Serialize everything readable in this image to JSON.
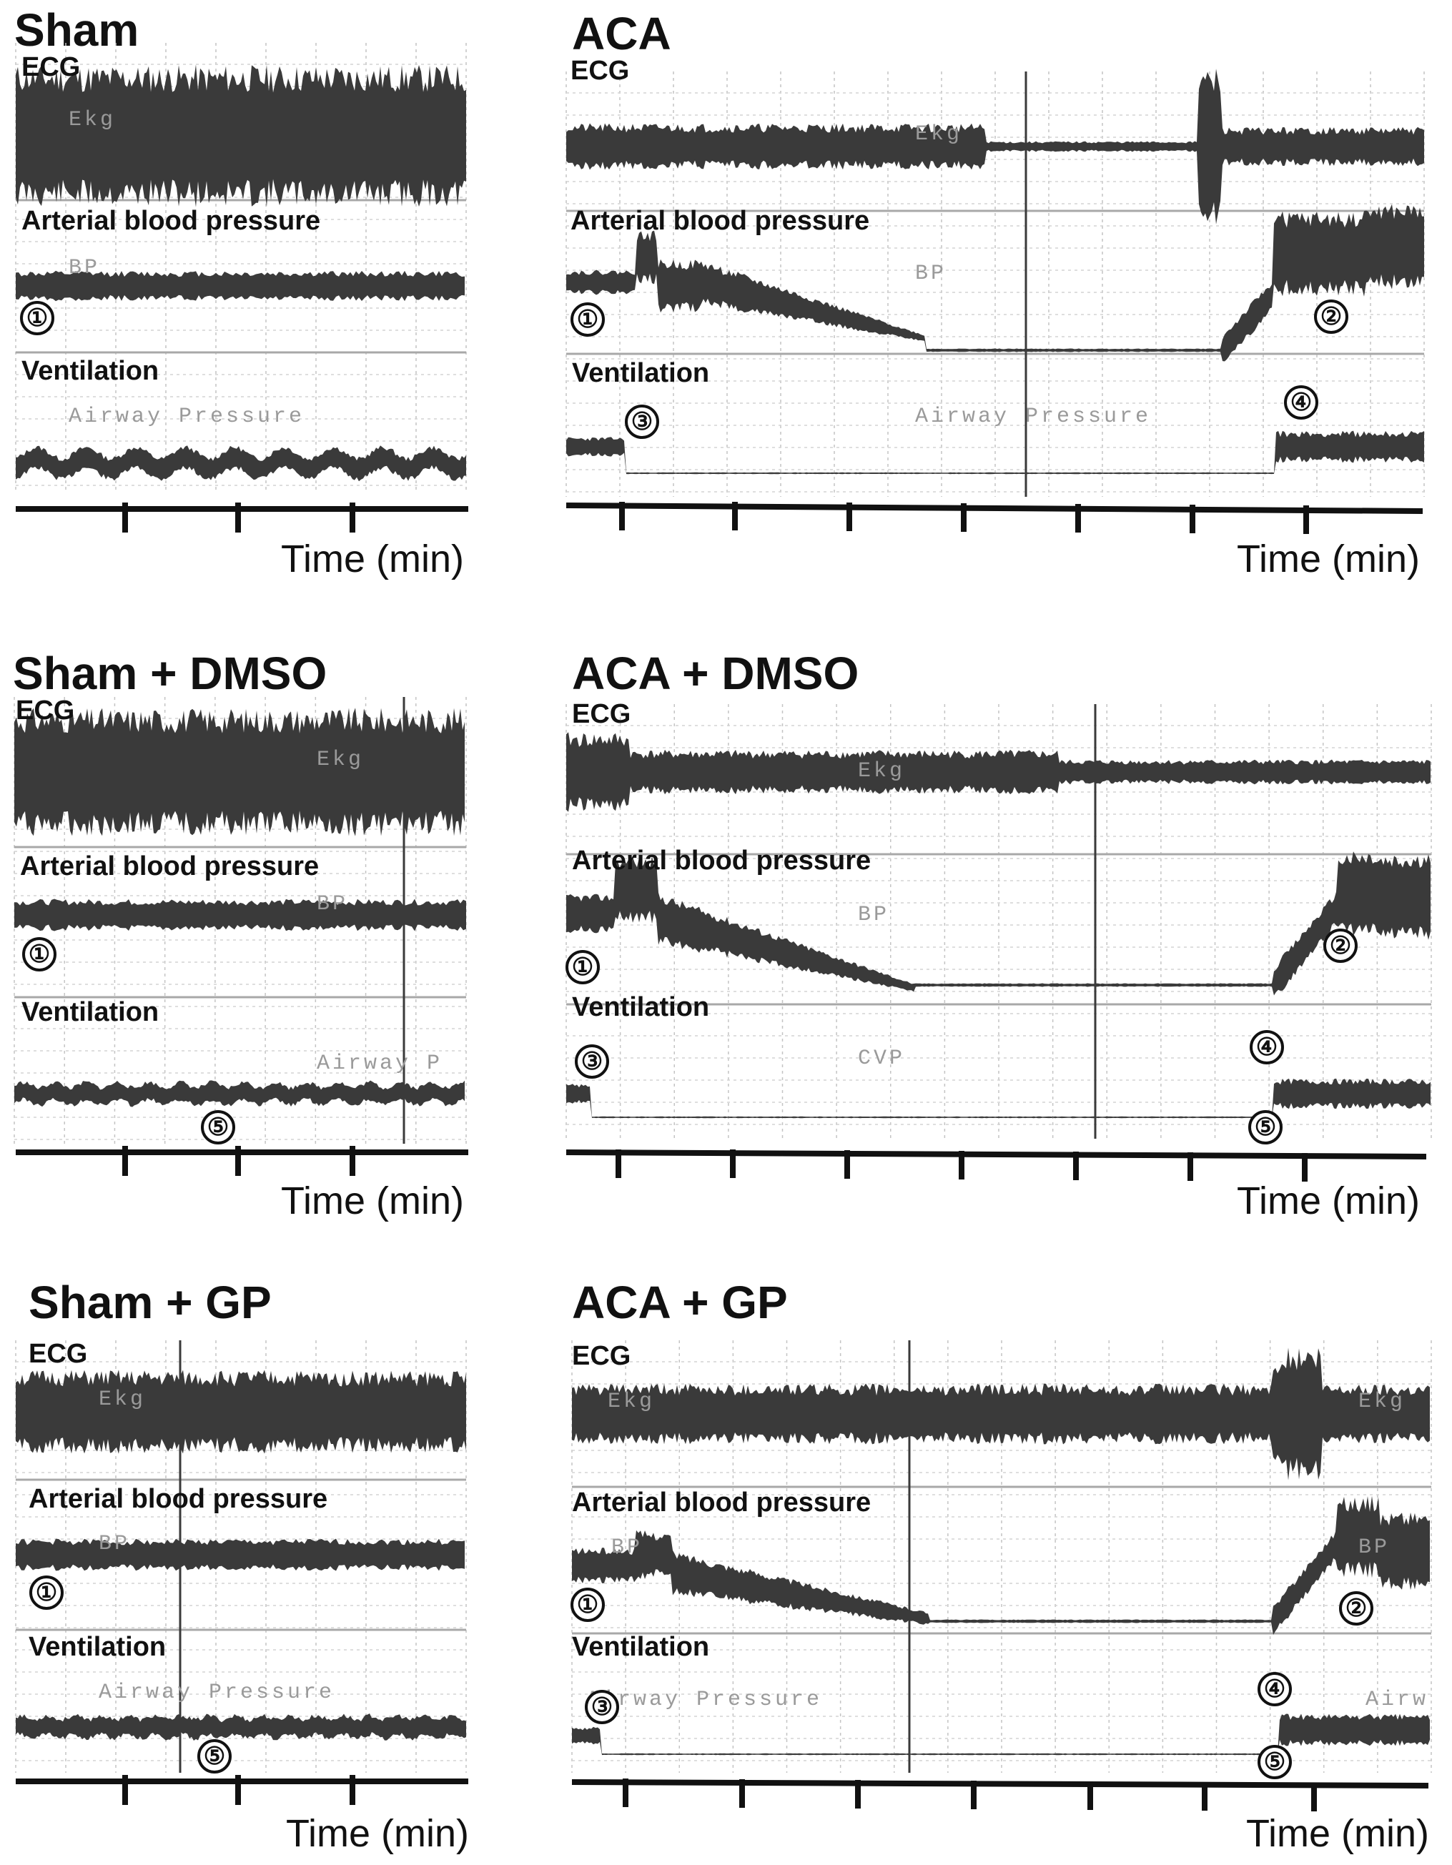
{
  "chart_data": [
    {
      "type": "line",
      "title": "Sham",
      "xlabel": "Time (min)",
      "traces": [
        {
          "label": "ECG",
          "trace_name": "Ekg"
        },
        {
          "label": "Arterial blood pressure",
          "trace_name": "BP"
        },
        {
          "label": "Ventilation",
          "trace_name": "Airway Pressure"
        }
      ],
      "markers": [
        {
          "symbol": "①",
          "trace": "Arterial blood pressure"
        }
      ]
    },
    {
      "type": "line",
      "title": "ACA",
      "xlabel": "Time (min)",
      "traces": [
        {
          "label": "ECG",
          "trace_name": "Ekg"
        },
        {
          "label": "Arterial blood pressure",
          "trace_name": "BP"
        },
        {
          "label": "Ventilation",
          "trace_name": "Airway Pressure"
        }
      ],
      "markers": [
        {
          "symbol": "①",
          "trace": "Arterial blood pressure"
        },
        {
          "symbol": "②",
          "trace": "Arterial blood pressure"
        },
        {
          "symbol": "③",
          "trace": "Ventilation"
        },
        {
          "symbol": "④",
          "trace": "Ventilation"
        }
      ]
    },
    {
      "type": "line",
      "title": "Sham + DMSO",
      "xlabel": "Time (min)",
      "traces": [
        {
          "label": "ECG",
          "trace_name": "Ekg"
        },
        {
          "label": "Arterial blood pressure",
          "trace_name": "BP"
        },
        {
          "label": "Ventilation",
          "trace_name": "Airway P"
        }
      ],
      "markers": [
        {
          "symbol": "①",
          "trace": "Arterial blood pressure"
        },
        {
          "symbol": "⑤",
          "trace": "Ventilation"
        }
      ]
    },
    {
      "type": "line",
      "title": "ACA + DMSO",
      "xlabel": "Time (min)",
      "traces": [
        {
          "label": "ECG",
          "trace_name": "Ekg"
        },
        {
          "label": "Arterial blood pressure",
          "trace_name": "BP"
        },
        {
          "label": "Ventilation",
          "trace_name": "CVP"
        }
      ],
      "markers": [
        {
          "symbol": "①",
          "trace": "Arterial blood pressure"
        },
        {
          "symbol": "②",
          "trace": "Arterial blood pressure"
        },
        {
          "symbol": "③",
          "trace": "Ventilation"
        },
        {
          "symbol": "④",
          "trace": "Ventilation"
        },
        {
          "symbol": "⑤",
          "trace": "Ventilation"
        }
      ]
    },
    {
      "type": "line",
      "title": "Sham + GP",
      "xlabel": "Time (min)",
      "traces": [
        {
          "label": "ECG",
          "trace_name": "Ekg"
        },
        {
          "label": "Arterial blood pressure",
          "trace_name": "BP"
        },
        {
          "label": "Ventilation",
          "trace_name": "Airway Pressure"
        }
      ],
      "markers": [
        {
          "symbol": "①",
          "trace": "Arterial blood pressure"
        },
        {
          "symbol": "⑤",
          "trace": "Ventilation"
        }
      ]
    },
    {
      "type": "line",
      "title": "ACA + GP",
      "xlabel": "Time (min)",
      "traces": [
        {
          "label": "ECG",
          "trace_name": "Ekg"
        },
        {
          "label": "Arterial blood pressure",
          "trace_name": "BP"
        },
        {
          "label": "Ventilation",
          "trace_name": "Airway Pressure"
        }
      ],
      "markers": [
        {
          "symbol": "①",
          "trace": "Arterial blood pressure"
        },
        {
          "symbol": "②",
          "trace": "Arterial blood pressure"
        },
        {
          "symbol": "③",
          "trace": "Ventilation"
        },
        {
          "symbol": "④",
          "trace": "Ventilation"
        },
        {
          "symbol": "⑤",
          "trace": "Ventilation"
        }
      ]
    }
  ],
  "extra_trace_labels": {
    "aca_gp_ecg_right": "Ekg",
    "aca_gp_bp_right": "BP",
    "aca_gp_vent_right": "Airw"
  },
  "colors": {
    "trace": "#3a3a3a",
    "grid_major": "#a8a8a8",
    "grid_minor": "#cfcfcf",
    "text": "#111111"
  }
}
